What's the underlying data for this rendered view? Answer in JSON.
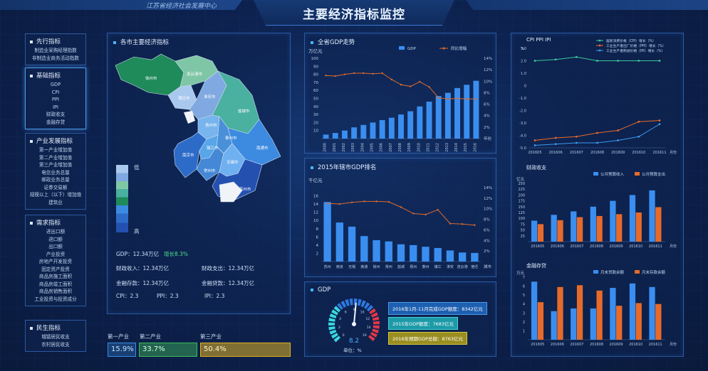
{
  "header": {
    "title": "主要经济指标监控",
    "org": "江苏省经济社会发展中心"
  },
  "menus": [
    {
      "title": "先行指标",
      "items": [
        "制造业采购经理指数",
        "非制造业商务活动指数"
      ],
      "active": false
    },
    {
      "title": "基础指标",
      "items": [
        "GDP",
        "CPI",
        "PPI",
        "IPI",
        "财政收支",
        "金融存贷"
      ],
      "active": true
    },
    {
      "title": "产业发展指标",
      "items": [
        "第一产业增加值",
        "第二产业增加值",
        "第三产业增加值",
        "电信业务总量",
        "邮政业务总量",
        "证券交易额",
        "规模以上（以下）增加值",
        "建筑业"
      ],
      "active": false
    },
    {
      "title": "需求指标",
      "items": [
        "进出口额",
        "进口额",
        "出口额",
        "产业投资",
        "房地产开发投资",
        "固定资产投资",
        "商品房施工面积",
        "商品房竣工面积",
        "商品房销售面积",
        "工业投资与投资成分"
      ],
      "active": false
    },
    {
      "title": "民生指标",
      "items": [
        "城镇居民收支",
        "农村居民收支"
      ],
      "active": false
    }
  ],
  "map_panel": {
    "title": "各市主要经济指标",
    "legend_high": "高",
    "legend_low": "低",
    "cities": [
      "连云港市",
      "徐州市",
      "宿迁市",
      "淮安市",
      "盐城市",
      "扬州市",
      "泰州市",
      "南京市",
      "镇江市",
      "常州市",
      "南通市",
      "无锡市",
      "苏州市"
    ],
    "gdp_label": "GDP：12.34万亿",
    "growth": "增长8.3%",
    "fiscal_income": "财政收入：12.34万亿",
    "fiscal_expense": "财政支出：12.34万亿",
    "deposit": "金融存款：12.34万亿",
    "loan": "金融贷款：12.34万亿",
    "cpi": "CPI：2.3",
    "ppi": "PPI：2.3",
    "ipi": "IPI：2.3"
  },
  "industry": {
    "labels": [
      "第一产业",
      "第二产业",
      "第三产业"
    ],
    "values": [
      "15.9%",
      "33.7%",
      "50.4%"
    ],
    "colors": [
      "#3a8ee8",
      "#3dbb5a",
      "#e0b020"
    ]
  },
  "gdp_trend": {
    "title": "全省GDP走势",
    "ylabel": "万亿元",
    "xlabel": "年份",
    "legend": [
      "GDP",
      "同比增幅"
    ],
    "chart_data": {
      "type": "bar",
      "categories": [
        "2000",
        "2001",
        "2002",
        "2003",
        "2004",
        "2005",
        "2006",
        "2007",
        "2008",
        "2009",
        "2010",
        "2011",
        "2012",
        "2013",
        "2014",
        "2015",
        "2016"
      ],
      "values": [
        5,
        7,
        10,
        14,
        17,
        20,
        23,
        26,
        30,
        34,
        40,
        46,
        53,
        57,
        63,
        67,
        72
      ],
      "line_values": [
        11.0,
        10.9,
        11.2,
        11.4,
        11.4,
        11.3,
        11.4,
        10.3,
        9.4,
        9.1,
        9.9,
        9.0,
        7.1,
        6.9,
        7.0,
        6.9,
        6.9
      ],
      "ylim": [
        0,
        100
      ],
      "y2lim": [
        0,
        14
      ],
      "yticks": [
        10,
        20,
        30,
        40,
        50,
        60,
        70,
        80,
        90,
        100
      ],
      "y2ticks": [
        "2%",
        "4%",
        "6%",
        "8%",
        "10%",
        "12%",
        "14%"
      ]
    }
  },
  "city_rank": {
    "title": "2015年辖市GDP排名",
    "ylabel": "千亿元",
    "xlabel": "城市",
    "chart_data": {
      "type": "bar",
      "categories": [
        "苏州",
        "南京",
        "无锡",
        "南通",
        "徐州",
        "常州",
        "盐城",
        "扬州",
        "泰州",
        "镇江",
        "淮安",
        "连云港",
        "宿迁"
      ],
      "values": [
        14.5,
        9.5,
        8.5,
        6.2,
        5.2,
        4.9,
        4.2,
        4.0,
        3.6,
        3.3,
        2.7,
        2.2,
        2.1
      ],
      "line_values": [
        11.0,
        10.9,
        11.2,
        11.4,
        11.4,
        11.3,
        10.3,
        9.1,
        8.9,
        9.8,
        7.2,
        7.1,
        6.9
      ],
      "ylim": [
        0,
        18
      ],
      "yticks": [
        2,
        4,
        6,
        8,
        10,
        12,
        14,
        16
      ],
      "y2ticks": [
        "2%",
        "4%",
        "6%",
        "8%",
        "10%",
        "12%",
        "14%"
      ]
    }
  },
  "gauge": {
    "title": "GDP",
    "value": "8.2",
    "unit": "单位：%",
    "ticks": [
      "0",
      "2",
      "4",
      "6",
      "8",
      "10",
      "12",
      "14",
      "16"
    ],
    "level": 0.52
  },
  "tags": [
    {
      "text": "2016年1月-11月完成GDP额度：8342亿元",
      "color": "#1d5fb0"
    },
    {
      "text": "2015年GDP额度：7683亿元",
      "color": "#1c9aa8"
    },
    {
      "text": "2016年预期GDP总额：8763亿元",
      "color": "#b0a020"
    }
  ],
  "price_chart": {
    "title": "CPI    PPI    IPI",
    "unit": "%",
    "legend": [
      "居民消费价格（CPI）增长（%）",
      "工业生产者出厂价格（PPI）增长（%）",
      "工业生产者购进价格（IPI）增长（%）"
    ],
    "chart_data": {
      "type": "line",
      "categories": [
        "201605",
        "201606",
        "201607",
        "201608",
        "201609",
        "201610",
        "201611"
      ],
      "series": [
        {
          "values": [
            2.0,
            2.1,
            2.3,
            2.0,
            2.0,
            2.0,
            2.0
          ]
        },
        {
          "values": [
            -4.4,
            -4.2,
            -4.1,
            -3.8,
            -3.6,
            -2.9,
            -2.8
          ]
        },
        {
          "values": [
            -4.8,
            -4.7,
            -4.6,
            -4.6,
            -4.4,
            -4.1,
            -3.1
          ]
        }
      ],
      "ylim": [
        -5.0,
        3.0
      ],
      "yticks": [
        "3.0",
        "2.0",
        "1.0",
        "0",
        "-1.0",
        "-2.0",
        "-3.0",
        "-4.0",
        "-5.0"
      ],
      "xlabel": "月份"
    }
  },
  "fiscal_chart": {
    "title": "财政收支",
    "ylabel": "亿元",
    "legend": [
      "公共预算收入",
      "公共预算支出"
    ],
    "chart_data": {
      "type": "bar",
      "categories": [
        "201605",
        "201606",
        "201607",
        "201608",
        "201609",
        "201610",
        "201611"
      ],
      "series": [
        {
          "values": [
            90,
            115,
            130,
            150,
            175,
            200,
            220
          ]
        },
        {
          "values": [
            75,
            92,
            105,
            110,
            118,
            125,
            148
          ]
        }
      ],
      "ylim": [
        0,
        250
      ],
      "yticks": [
        "250",
        "225",
        "200",
        "175",
        "150",
        "125",
        "100",
        "75",
        "50",
        "25"
      ],
      "xlabel": "月份"
    }
  },
  "finance_chart": {
    "title": "金融存贷",
    "ylabel": "万元",
    "legend": [
      "月末贷款余额",
      "月末存款余额"
    ],
    "chart_data": {
      "type": "bar",
      "categories": [
        "201605",
        "201606",
        "201607",
        "201608",
        "201609",
        "201610",
        "201611"
      ],
      "series": [
        {
          "values": [
            6.5,
            3.2,
            3.5,
            3.5,
            5.8,
            6.3,
            5.9
          ]
        },
        {
          "values": [
            4.2,
            5.9,
            6.1,
            5.5,
            3.8,
            4.1,
            4.0
          ]
        }
      ],
      "ylim": [
        0,
        7
      ],
      "yticks": [
        "7",
        "6",
        "5",
        "4",
        "3",
        "2",
        "1"
      ],
      "xlabel": "月份"
    }
  }
}
